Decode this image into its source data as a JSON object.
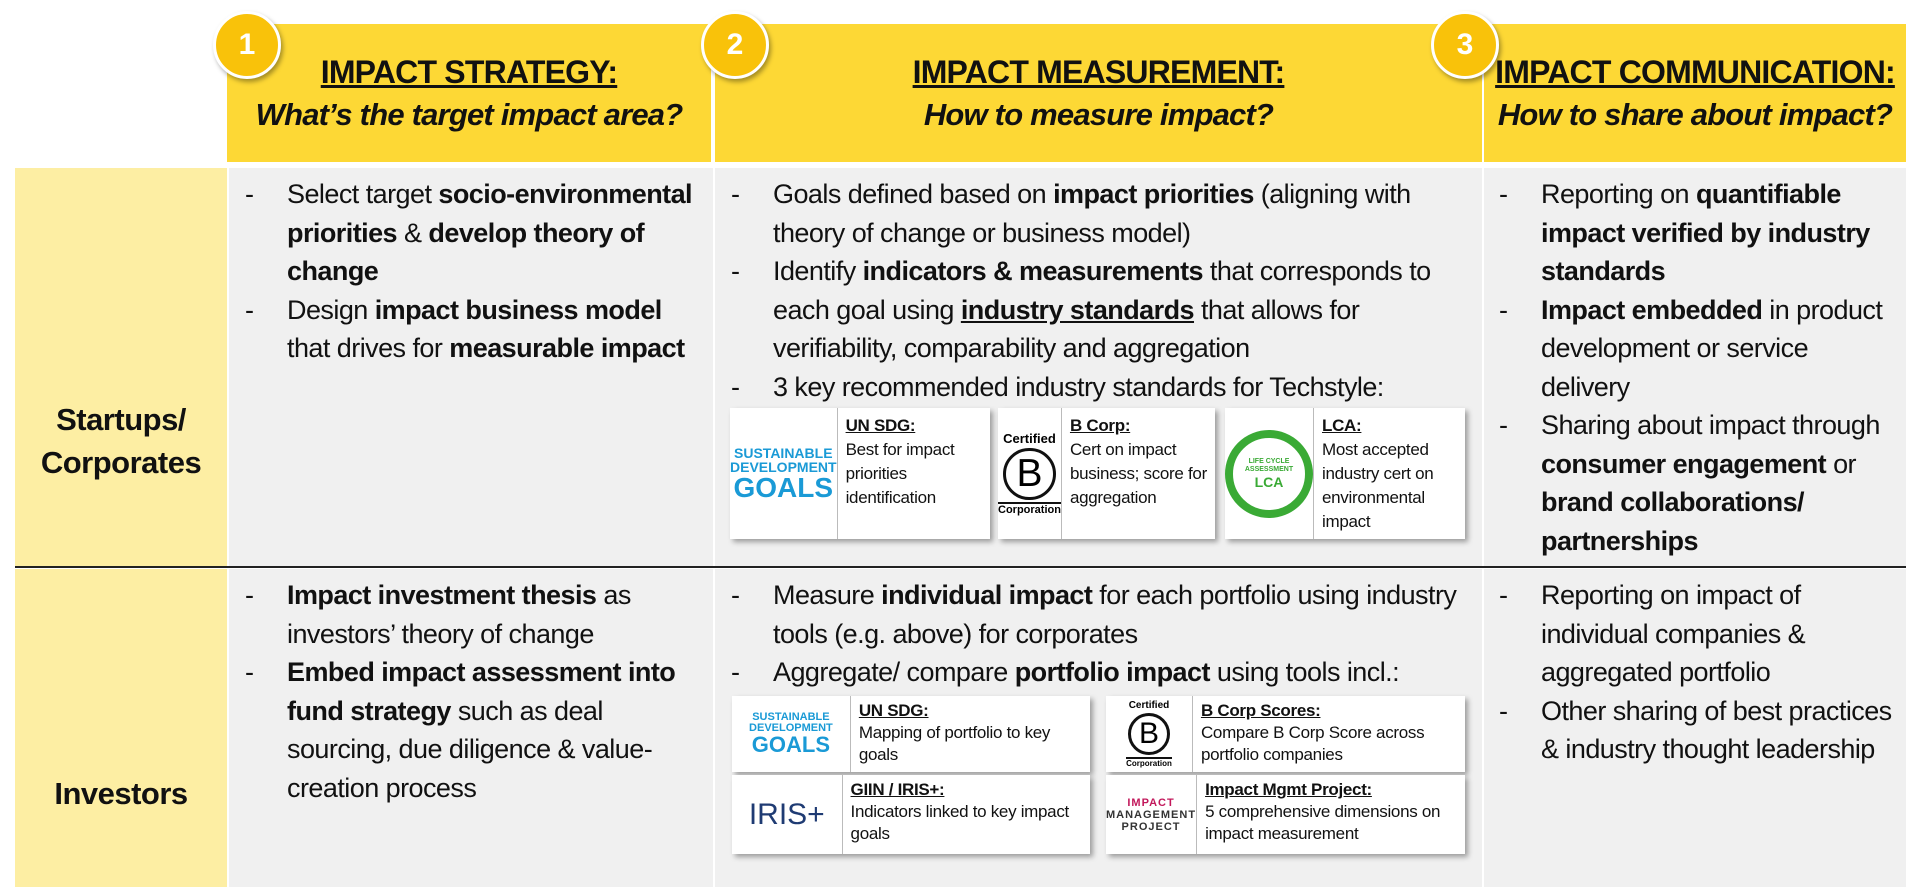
{
  "header": {
    "columns": [
      {
        "number": "1",
        "title": "IMPACT STRATEGY:",
        "question": "What’s the target impact area?"
      },
      {
        "number": "2",
        "title": "IMPACT MEASUREMENT:",
        "question": "How to measure impact?"
      },
      {
        "number": "3",
        "title": "IMPACT COMMUNICATION:",
        "question": "How to share about impact?"
      }
    ]
  },
  "rows": [
    {
      "label": "Startups/ Corporates",
      "icon": "globe",
      "cells": [
        [
          [
            {
              "t": "Select target "
            },
            {
              "t": "socio-environmental priorities",
              "b": true
            },
            {
              "t": " & "
            },
            {
              "t": "develop theory of change",
              "b": true
            }
          ],
          [
            {
              "t": "Design "
            },
            {
              "t": "impact business model",
              "b": true
            },
            {
              "t": " that drives for "
            },
            {
              "t": "measurable impact",
              "b": true
            }
          ]
        ],
        [
          [
            {
              "t": "Goals defined based on "
            },
            {
              "t": "impact priorities",
              "b": true
            },
            {
              "t": " (aligning with theory of change or business model)"
            }
          ],
          [
            {
              "t": "Identify "
            },
            {
              "t": "indicators & measurements",
              "b": true
            },
            {
              "t": " that corresponds to each goal using "
            },
            {
              "t": "industry standards",
              "b": true,
              "u": true
            },
            {
              "t": " that allows for verifiability, comparability and aggregation"
            }
          ],
          [
            {
              "t": "3 key recommended industry standards for Techstyle:"
            }
          ]
        ],
        [
          [
            {
              "t": "Reporting on "
            },
            {
              "t": "quantifiable impact verified by industry standards",
              "b": true
            }
          ],
          [
            {
              "t": "Impact embedded",
              "b": true
            },
            {
              "t": " in product development or service delivery"
            }
          ],
          [
            {
              "t": "Sharing about impact through "
            },
            {
              "t": "consumer engagement",
              "b": true
            },
            {
              "t": " or "
            },
            {
              "t": "brand collaborations/ partnerships",
              "b": true
            }
          ]
        ]
      ],
      "cards": [
        {
          "kind": "sdg",
          "logo": [
            "SUSTAINABLE",
            "DEVELOPMENT",
            "GOALS"
          ],
          "title": "UN SDG:",
          "text": "Best for impact priorities identification"
        },
        {
          "kind": "bcorp",
          "logo": [
            "Certified",
            "B",
            "Corporation"
          ],
          "title": "B Corp:",
          "text": "Cert on impact business; score for aggregation"
        },
        {
          "kind": "lca",
          "logo": [
            "LIFE CYCLE ASSESSMENT",
            "LCA"
          ],
          "title": "LCA:",
          "text": "Most accepted industry cert on environmental impact"
        }
      ]
    },
    {
      "label": "Investors",
      "icon": "plant",
      "cells": [
        [
          [
            {
              "t": "Impact investment thesis",
              "b": true
            },
            {
              "t": " as investors’ theory of change"
            }
          ],
          [
            {
              "t": "Embed impact assessment into fund strategy",
              "b": true
            },
            {
              "t": " such as deal sourcing, due diligence & value-creation process"
            }
          ]
        ],
        [
          [
            {
              "t": "Measure "
            },
            {
              "t": "individual impact",
              "b": true
            },
            {
              "t": " for each portfolio using industry tools (e.g. above) for corporates"
            }
          ],
          [
            {
              "t": "Aggregate/ compare "
            },
            {
              "t": "portfolio impact",
              "b": true
            },
            {
              "t": " using tools incl.:"
            }
          ]
        ],
        [
          [
            {
              "t": "Reporting on impact of individual companies & aggregated portfolio"
            }
          ],
          [
            {
              "t": "Other sharing of best practices & industry thought leadership"
            }
          ]
        ]
      ],
      "cards": [
        {
          "kind": "sdg",
          "logo": [
            "SUSTAINABLE",
            "DEVELOPMENT",
            "GOALS"
          ],
          "title": "UN SDG:",
          "text": "Mapping of portfolio to key goals"
        },
        {
          "kind": "bcorp",
          "logo": [
            "Certified",
            "B",
            "Corporation"
          ],
          "title": "B Corp Scores:",
          "text": "Compare B Corp Score across portfolio companies"
        },
        {
          "kind": "iris",
          "logo": [
            "IRIS+"
          ],
          "title": "GIIN / IRIS+:",
          "text": "Indicators linked to key impact goals"
        },
        {
          "kind": "imp",
          "logo": [
            "IMPACT",
            "MANAGEMENT",
            "PROJECT"
          ],
          "title": "Impact Mgmt Project:",
          "text": "5 comprehensive dimensions on impact measurement"
        }
      ]
    }
  ]
}
